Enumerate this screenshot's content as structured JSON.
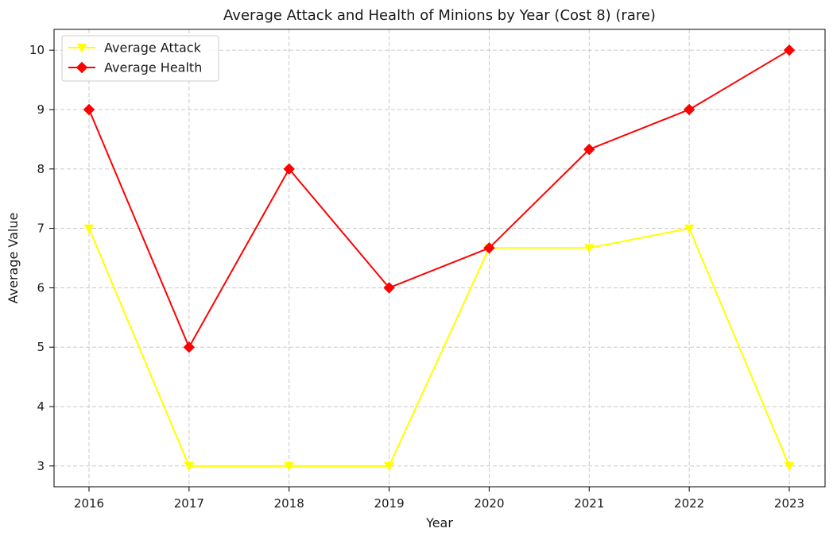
{
  "chart_data": {
    "type": "line",
    "title": "Average Attack and Health of Minions by Year (Cost 8) (rare)",
    "xlabel": "Year",
    "ylabel": "Average Value",
    "x": [
      2016,
      2017,
      2018,
      2019,
      2020,
      2021,
      2022,
      2023
    ],
    "x_tick_labels": [
      "2016",
      "2017",
      "2018",
      "2019",
      "2020",
      "2021",
      "2022",
      "2023"
    ],
    "y_ticks": [
      3,
      4,
      5,
      6,
      7,
      8,
      9,
      10
    ],
    "y_tick_labels": [
      "3",
      "4",
      "5",
      "6",
      "7",
      "8",
      "9",
      "10"
    ],
    "ylim": [
      2.65,
      10.35
    ],
    "grid": true,
    "grid_style": "dashed",
    "legend_position": "top-left",
    "series": [
      {
        "name": "Average Attack",
        "values": [
          7,
          3,
          3,
          3,
          6.67,
          6.67,
          7,
          3
        ],
        "color": "#ffff00",
        "marker": "triangle-down"
      },
      {
        "name": "Average Health",
        "values": [
          9,
          5,
          8,
          6,
          6.67,
          8.33,
          9,
          10
        ],
        "color": "#ff0000",
        "marker": "diamond"
      }
    ]
  }
}
